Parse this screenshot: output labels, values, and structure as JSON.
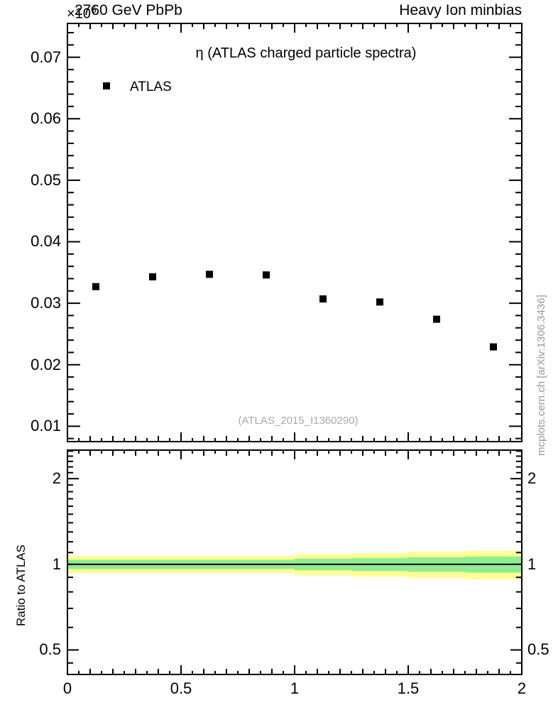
{
  "header": {
    "left_title": "2760 GeV PbPb",
    "right_title": "Heavy Ion minbias",
    "y_axis_exponent": {
      "base": "×10",
      "power": "6"
    }
  },
  "main_panel": {
    "title": "η (ATLAS charged particle spectra)",
    "legend": {
      "items": [
        {
          "label": "ATLAS",
          "marker": "filled-black-square"
        }
      ]
    },
    "watermark": "(ATLAS_2015_I1360290)"
  },
  "ratio_panel": {
    "ylabel": "Ratio to ATLAS"
  },
  "side_note": "mcplots.cern.ch [arXiv:1306.3436]",
  "colors": {
    "outer_band": "#ffff96",
    "inner_band": "#90ee90",
    "marker": "#000000",
    "frame": "#000000",
    "watermark_gray": "#aaaaaa",
    "side_note_gray": "#999999"
  },
  "chart_data": [
    {
      "id": "main",
      "type": "scatter",
      "title": "η (ATLAS charged particle spectra)",
      "xlabel": "",
      "ylabel": "",
      "scale_note": "y values ×10^6",
      "xlim": [
        0,
        2
      ],
      "ylim": [
        0.0075,
        0.0755
      ],
      "grid": false,
      "legend_position": "top-left-inside",
      "xticks": {
        "major": [
          0,
          0.5,
          1,
          1.5,
          2
        ],
        "labels": [
          "0",
          "0.5",
          "1",
          "1.5",
          "2"
        ],
        "medium_step": 0.1,
        "minor_step": 0.05,
        "show_labels": false
      },
      "yticks": {
        "major": [
          0.01,
          0.02,
          0.03,
          0.04,
          0.05,
          0.06,
          0.07
        ],
        "labels": [
          "0.01",
          "0.02",
          "0.03",
          "0.04",
          "0.05",
          "0.06",
          "0.07"
        ],
        "minor_step": 0.002
      },
      "series": [
        {
          "name": "ATLAS",
          "marker": "filled-square",
          "color": "#000000",
          "x": [
            0.125,
            0.375,
            0.625,
            0.875,
            1.125,
            1.375,
            1.625,
            1.875
          ],
          "y": [
            0.0327,
            0.0343,
            0.0347,
            0.0346,
            0.0307,
            0.0302,
            0.0274,
            0.0229
          ]
        }
      ]
    },
    {
      "id": "ratio",
      "type": "band",
      "ylabel": "Ratio to ATLAS",
      "yscale": "log",
      "xlim": [
        0,
        2
      ],
      "ylim": [
        0.41,
        2.52
      ],
      "grid": false,
      "xticks": {
        "major": [
          0,
          0.5,
          1,
          1.5,
          2
        ],
        "labels": [
          "0",
          "0.5",
          "1",
          "1.5",
          "2"
        ],
        "medium_step": 0.1,
        "minor_step": 0.05,
        "show_labels": true
      },
      "yticks": {
        "major": [
          0.5,
          1,
          2
        ],
        "labels": [
          "0.5",
          "1",
          "2"
        ],
        "minor": [
          0.45,
          0.6,
          0.7,
          0.8,
          0.9,
          1.1,
          1.2,
          1.3,
          1.4,
          1.5,
          1.6,
          1.7,
          1.8,
          1.9,
          2.1,
          2.2,
          2.3,
          2.4,
          2.5
        ]
      },
      "bin_edges": [
        0,
        0.25,
        0.5,
        0.75,
        1.0,
        1.25,
        1.5,
        1.75,
        2.0
      ],
      "bands": [
        {
          "name": "outer-uncertainty",
          "color": "#ffff96",
          "lo": [
            0.93,
            0.93,
            0.93,
            0.93,
            0.915,
            0.905,
            0.895,
            0.885
          ],
          "hi": [
            1.07,
            1.07,
            1.07,
            1.07,
            1.085,
            1.095,
            1.105,
            1.115
          ]
        },
        {
          "name": "inner-uncertainty",
          "color": "#90ee90",
          "lo": [
            0.963,
            0.963,
            0.963,
            0.963,
            0.953,
            0.947,
            0.941,
            0.935
          ],
          "hi": [
            1.037,
            1.037,
            1.037,
            1.037,
            1.047,
            1.053,
            1.059,
            1.065
          ]
        }
      ],
      "reference_line": {
        "y": 1,
        "color": "#000000"
      }
    }
  ]
}
